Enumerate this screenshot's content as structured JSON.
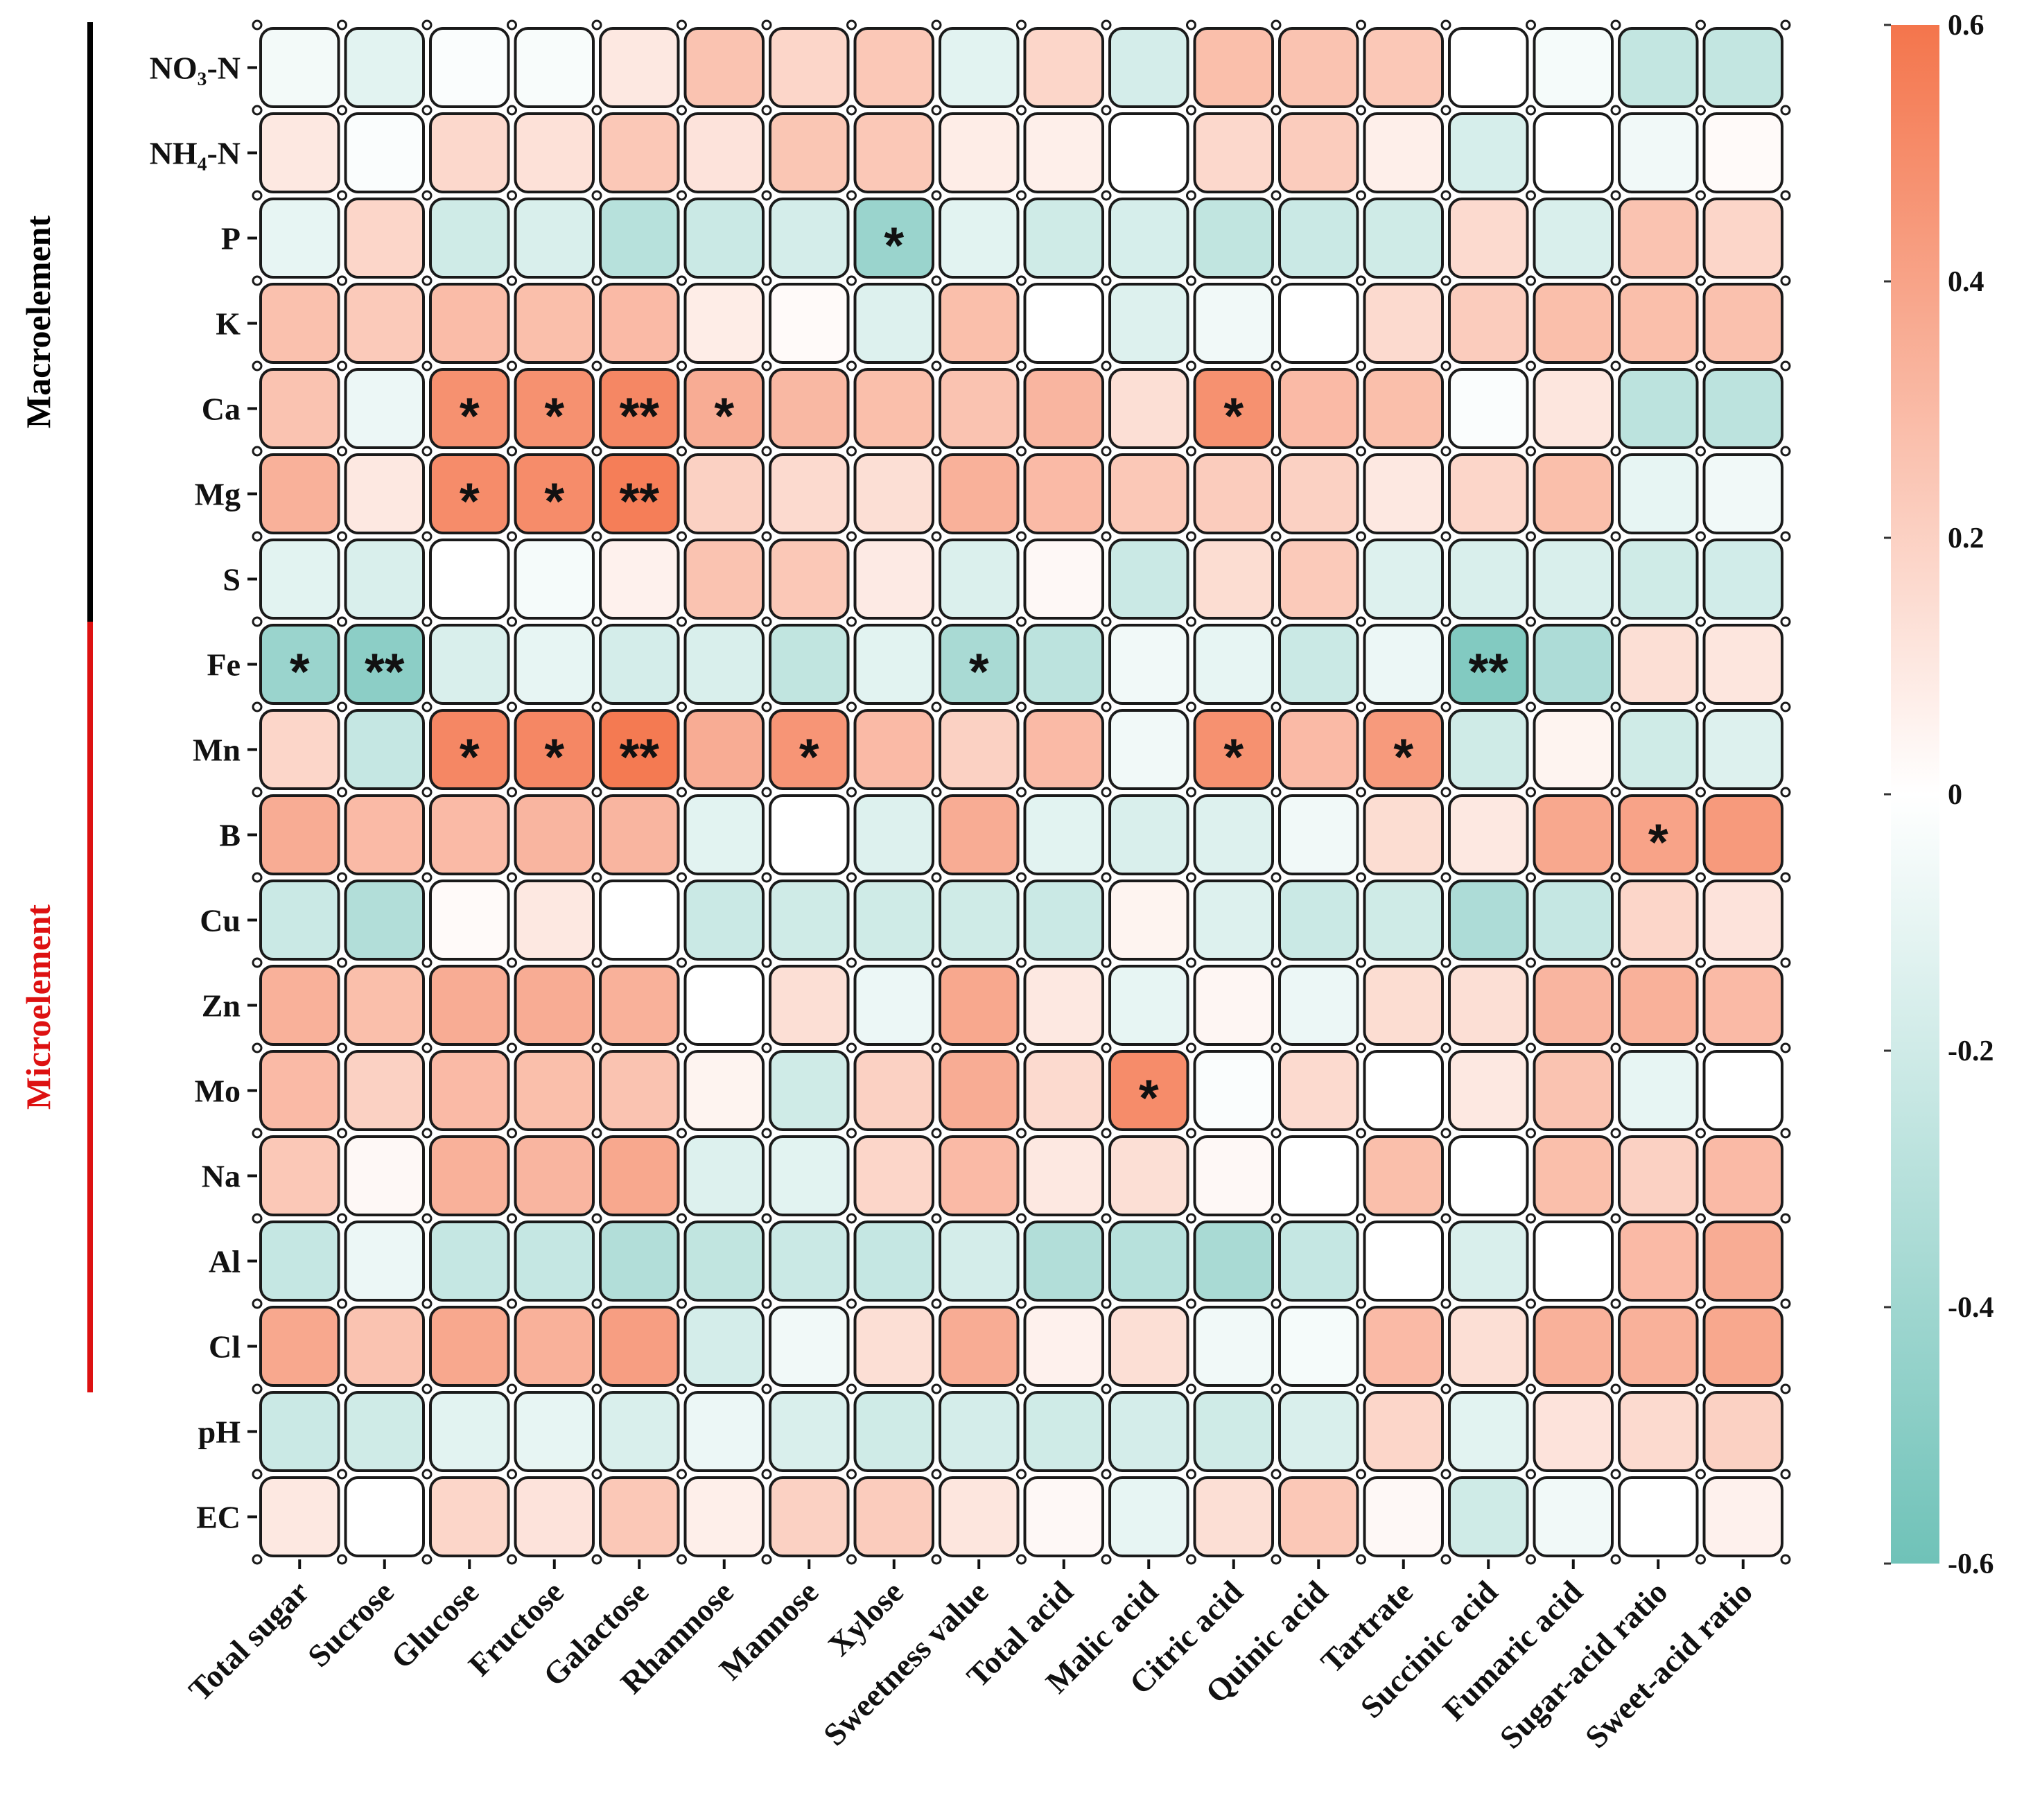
{
  "chart_data": {
    "type": "heatmap",
    "title": "",
    "row_labels": [
      "NO₃-N",
      "NH₄-N",
      "P",
      "K",
      "Ca",
      "Mg",
      "S",
      "Fe",
      "Mn",
      "B",
      "Cu",
      "Zn",
      "Mo",
      "Na",
      "Al",
      "Cl",
      "pH",
      "EC"
    ],
    "col_labels": [
      "Total sugar",
      "Sucrose",
      "Glucose",
      "Fructose",
      "Galactose",
      "Rhamnose",
      "Mannose",
      "Xylose",
      "Sweetness value",
      "Total acid",
      "Malic acid",
      "Citric acid",
      "Quinic acid",
      "Tartrate",
      "Succinic acid",
      "Fumaric acid",
      "Sugar-acid ratio",
      "Sweet-acid ratio"
    ],
    "groups": [
      {
        "label": "Macroelement",
        "rows": [
          0,
          6
        ],
        "color": "#000000"
      },
      {
        "label": "Microelement",
        "rows": [
          7,
          15
        ],
        "color": "#dd1111"
      }
    ],
    "colorbar": {
      "min": -0.6,
      "max": 0.6,
      "ticks": [
        "0.6",
        "0.4",
        "0.2",
        "0",
        "-0.2",
        "-0.4",
        "-0.6"
      ],
      "low_color": "#6fc2b8",
      "mid_color": "#ffffff",
      "high_color": "#f4754c"
    },
    "values": [
      [
        -0.05,
        -0.12,
        -0.02,
        -0.03,
        0.1,
        0.26,
        0.18,
        0.24,
        -0.12,
        0.18,
        -0.18,
        0.28,
        0.26,
        0.24,
        0.0,
        -0.04,
        -0.25,
        -0.25
      ],
      [
        0.1,
        -0.02,
        0.17,
        0.13,
        0.24,
        0.12,
        0.25,
        0.24,
        0.08,
        0.07,
        0.0,
        0.17,
        0.22,
        0.07,
        -0.17,
        0.0,
        -0.06,
        0.02
      ],
      [
        -0.1,
        0.18,
        -0.2,
        -0.16,
        -0.3,
        -0.22,
        -0.18,
        -0.42,
        -0.12,
        -0.2,
        -0.17,
        -0.26,
        -0.22,
        -0.2,
        0.16,
        -0.16,
        0.26,
        0.18
      ],
      [
        0.27,
        0.23,
        0.29,
        0.28,
        0.3,
        0.08,
        0.02,
        -0.14,
        0.28,
        0.0,
        -0.14,
        -0.06,
        0.0,
        0.16,
        0.22,
        0.28,
        0.28,
        0.27
      ],
      [
        0.26,
        -0.08,
        0.48,
        0.48,
        0.52,
        0.36,
        0.31,
        0.28,
        0.26,
        0.32,
        0.14,
        0.48,
        0.3,
        0.28,
        -0.02,
        0.11,
        -0.28,
        -0.28
      ],
      [
        0.34,
        0.1,
        0.5,
        0.5,
        0.56,
        0.2,
        0.16,
        0.14,
        0.34,
        0.3,
        0.24,
        0.22,
        0.2,
        0.1,
        0.18,
        0.28,
        -0.1,
        -0.06
      ],
      [
        -0.12,
        -0.16,
        0.0,
        -0.04,
        0.06,
        0.26,
        0.24,
        0.09,
        -0.15,
        0.03,
        -0.22,
        0.15,
        0.23,
        -0.14,
        -0.16,
        -0.16,
        -0.2,
        -0.19
      ],
      [
        -0.42,
        -0.48,
        -0.16,
        -0.1,
        -0.18,
        -0.16,
        -0.26,
        -0.12,
        -0.36,
        -0.28,
        -0.06,
        -0.1,
        -0.22,
        -0.08,
        -0.52,
        -0.34,
        0.14,
        0.11
      ],
      [
        0.18,
        -0.24,
        0.52,
        0.52,
        0.58,
        0.36,
        0.46,
        0.3,
        0.2,
        0.3,
        -0.06,
        0.48,
        0.3,
        0.44,
        -0.2,
        0.05,
        -0.2,
        -0.14
      ],
      [
        0.36,
        0.3,
        0.3,
        0.32,
        0.32,
        -0.12,
        0.0,
        -0.14,
        0.36,
        -0.12,
        -0.16,
        -0.14,
        -0.06,
        0.15,
        0.1,
        0.38,
        0.4,
        0.44
      ],
      [
        -0.22,
        -0.32,
        0.02,
        0.1,
        0.0,
        -0.22,
        -0.2,
        -0.2,
        -0.2,
        -0.22,
        0.05,
        -0.14,
        -0.22,
        -0.2,
        -0.34,
        -0.24,
        0.18,
        0.12
      ],
      [
        0.34,
        0.28,
        0.36,
        0.36,
        0.34,
        0.0,
        0.14,
        -0.08,
        0.38,
        0.1,
        -0.1,
        0.04,
        -0.08,
        0.15,
        0.14,
        0.32,
        0.34,
        0.3
      ],
      [
        0.3,
        0.2,
        0.3,
        0.28,
        0.26,
        0.05,
        -0.2,
        0.2,
        0.36,
        0.16,
        0.5,
        -0.02,
        0.16,
        0.0,
        0.1,
        0.26,
        -0.1,
        0.0
      ],
      [
        0.24,
        0.03,
        0.34,
        0.32,
        0.38,
        -0.14,
        -0.12,
        0.18,
        0.3,
        0.1,
        0.14,
        0.03,
        0.0,
        0.28,
        0.0,
        0.28,
        0.2,
        0.3
      ],
      [
        -0.24,
        -0.08,
        -0.24,
        -0.24,
        -0.32,
        -0.26,
        -0.22,
        -0.24,
        -0.18,
        -0.32,
        -0.3,
        -0.36,
        -0.24,
        0.0,
        -0.16,
        0.0,
        0.3,
        0.36
      ],
      [
        0.38,
        0.26,
        0.38,
        0.34,
        0.42,
        -0.18,
        -0.06,
        0.14,
        0.36,
        0.06,
        0.14,
        -0.06,
        -0.04,
        0.3,
        0.14,
        0.34,
        0.34,
        0.38
      ],
      [
        -0.22,
        -0.2,
        -0.12,
        -0.1,
        -0.16,
        -0.08,
        -0.16,
        -0.2,
        -0.18,
        -0.2,
        -0.18,
        -0.2,
        -0.16,
        0.18,
        -0.12,
        0.12,
        0.16,
        0.2
      ],
      [
        0.1,
        0.0,
        0.18,
        0.12,
        0.24,
        0.07,
        0.2,
        0.22,
        0.11,
        0.03,
        -0.1,
        0.14,
        0.24,
        0.03,
        -0.2,
        -0.06,
        0.0,
        0.06
      ]
    ],
    "significance": [
      [
        "",
        "",
        "",
        "",
        "",
        "",
        "",
        "",
        "",
        "",
        "",
        "",
        "",
        "",
        "",
        "",
        "",
        ""
      ],
      [
        "",
        "",
        "",
        "",
        "",
        "",
        "",
        "",
        "",
        "",
        "",
        "",
        "",
        "",
        "",
        "",
        "",
        ""
      ],
      [
        "",
        "",
        "",
        "",
        "",
        "",
        "",
        "*",
        "",
        "",
        "",
        "",
        "",
        "",
        "",
        "",
        "",
        ""
      ],
      [
        "",
        "",
        "",
        "",
        "",
        "",
        "",
        "",
        "",
        "",
        "",
        "",
        "",
        "",
        "",
        "",
        "",
        ""
      ],
      [
        "",
        "",
        "*",
        "*",
        "**",
        "*",
        "",
        "",
        "",
        "",
        "",
        "*",
        "",
        "",
        "",
        "",
        "",
        ""
      ],
      [
        "",
        "",
        "*",
        "*",
        "**",
        "",
        "",
        "",
        "",
        "",
        "",
        "",
        "",
        "",
        "",
        "",
        "",
        ""
      ],
      [
        "",
        "",
        "",
        "",
        "",
        "",
        "",
        "",
        "",
        "",
        "",
        "",
        "",
        "",
        "",
        "",
        "",
        ""
      ],
      [
        "*",
        "**",
        "",
        "",
        "",
        "",
        "",
        "",
        "*",
        "",
        "",
        "",
        "",
        "",
        "**",
        "",
        "",
        ""
      ],
      [
        "",
        "",
        "*",
        "*",
        "**",
        "",
        "*",
        "",
        "",
        "",
        "",
        "*",
        "",
        "*",
        "",
        "",
        "",
        ""
      ],
      [
        "",
        "",
        "",
        "",
        "",
        "",
        "",
        "",
        "",
        "",
        "",
        "",
        "",
        "",
        "",
        "",
        "*",
        ""
      ],
      [
        "",
        "",
        "",
        "",
        "",
        "",
        "",
        "",
        "",
        "",
        "",
        "",
        "",
        "",
        "",
        "",
        "",
        ""
      ],
      [
        "",
        "",
        "",
        "",
        "",
        "",
        "",
        "",
        "",
        "",
        "",
        "",
        "",
        "",
        "",
        "",
        "",
        ""
      ],
      [
        "",
        "",
        "",
        "",
        "",
        "",
        "",
        "",
        "",
        "",
        "*",
        "",
        "",
        "",
        "",
        "",
        "",
        ""
      ],
      [
        "",
        "",
        "",
        "",
        "",
        "",
        "",
        "",
        "",
        "",
        "",
        "",
        "",
        "",
        "",
        "",
        "",
        ""
      ],
      [
        "",
        "",
        "",
        "",
        "",
        "",
        "",
        "",
        "",
        "",
        "",
        "",
        "",
        "",
        "",
        "",
        "",
        ""
      ],
      [
        "",
        "",
        "",
        "",
        "",
        "",
        "",
        "",
        "",
        "",
        "",
        "",
        "",
        "",
        "",
        "",
        "",
        ""
      ],
      [
        "",
        "",
        "",
        "",
        "",
        "",
        "",
        "",
        "",
        "",
        "",
        "",
        "",
        "",
        "",
        "",
        "",
        ""
      ],
      [
        "",
        "",
        "",
        "",
        "",
        "",
        "",
        "",
        "",
        "",
        "",
        "",
        "",
        "",
        "",
        "",
        "",
        ""
      ]
    ]
  }
}
